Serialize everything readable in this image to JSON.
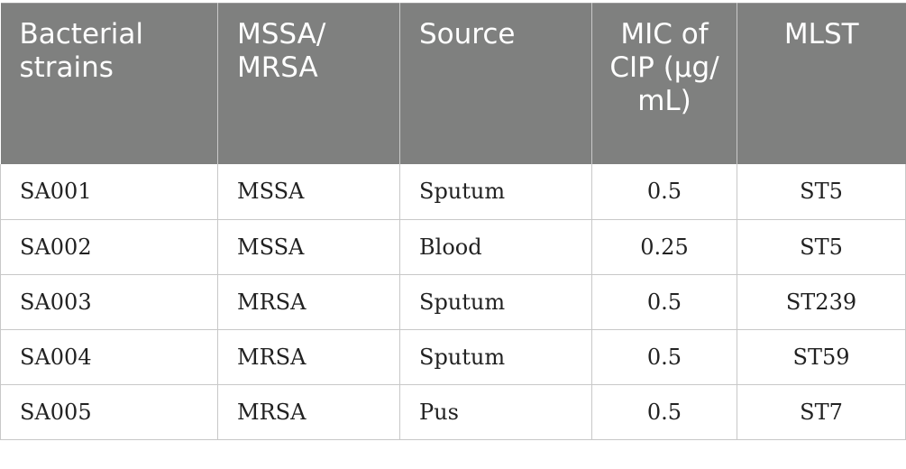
{
  "table": {
    "headers": [
      "Bacterial strains",
      "MSSA/ MRSA",
      "Source",
      "MIC of CIP (μg/ mL)",
      "MLST"
    ],
    "rows": [
      [
        "SA001",
        "MSSA",
        "Sputum",
        "0.5",
        "ST5"
      ],
      [
        "SA002",
        "MSSA",
        "Blood",
        "0.25",
        "ST5"
      ],
      [
        "SA003",
        "MRSA",
        "Sputum",
        "0.5",
        "ST239"
      ],
      [
        "SA004",
        "MRSA",
        "Sputum",
        "0.5",
        "ST59"
      ],
      [
        "SA005",
        "MRSA",
        "Pus",
        "0.5",
        "ST7"
      ]
    ]
  }
}
